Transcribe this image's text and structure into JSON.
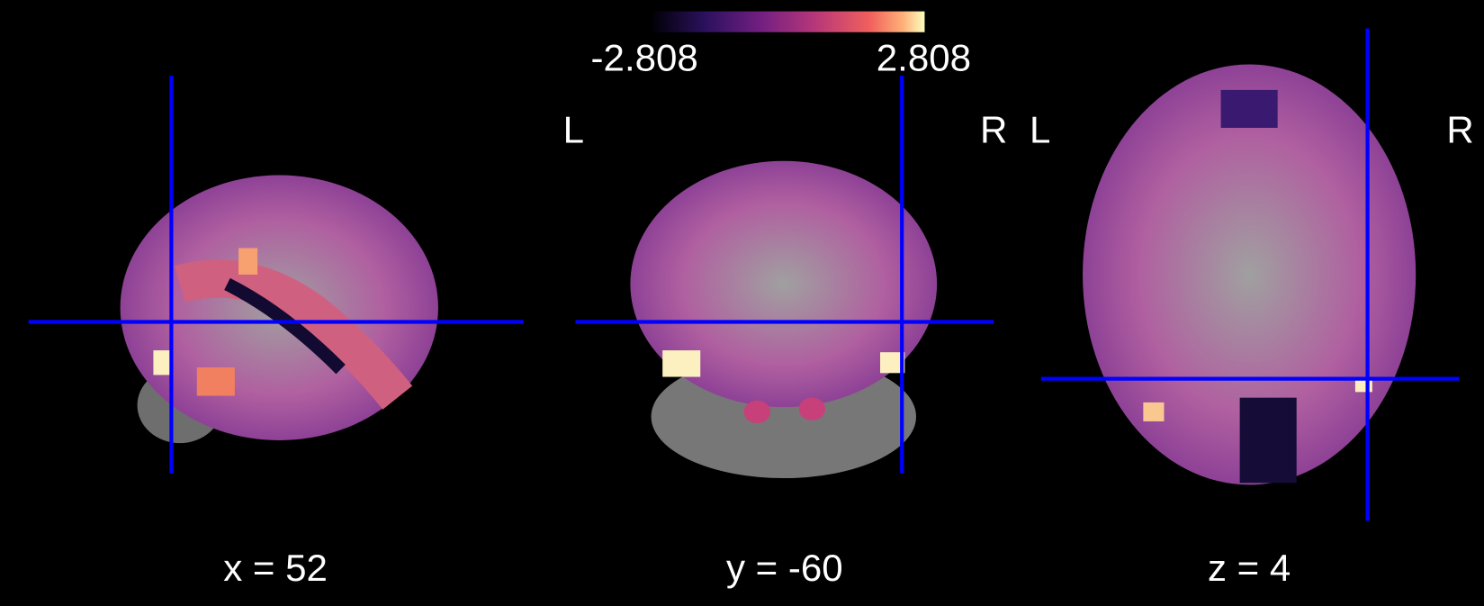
{
  "colorbar": {
    "ticks": [
      -2.808,
      2.808
    ]
  },
  "views": [
    {
      "label": "x = 52"
    },
    {
      "label": "y = -60",
      "left": "L",
      "right": "R"
    },
    {
      "label": "z = 4",
      "left": "L",
      "right": "R"
    }
  ]
}
